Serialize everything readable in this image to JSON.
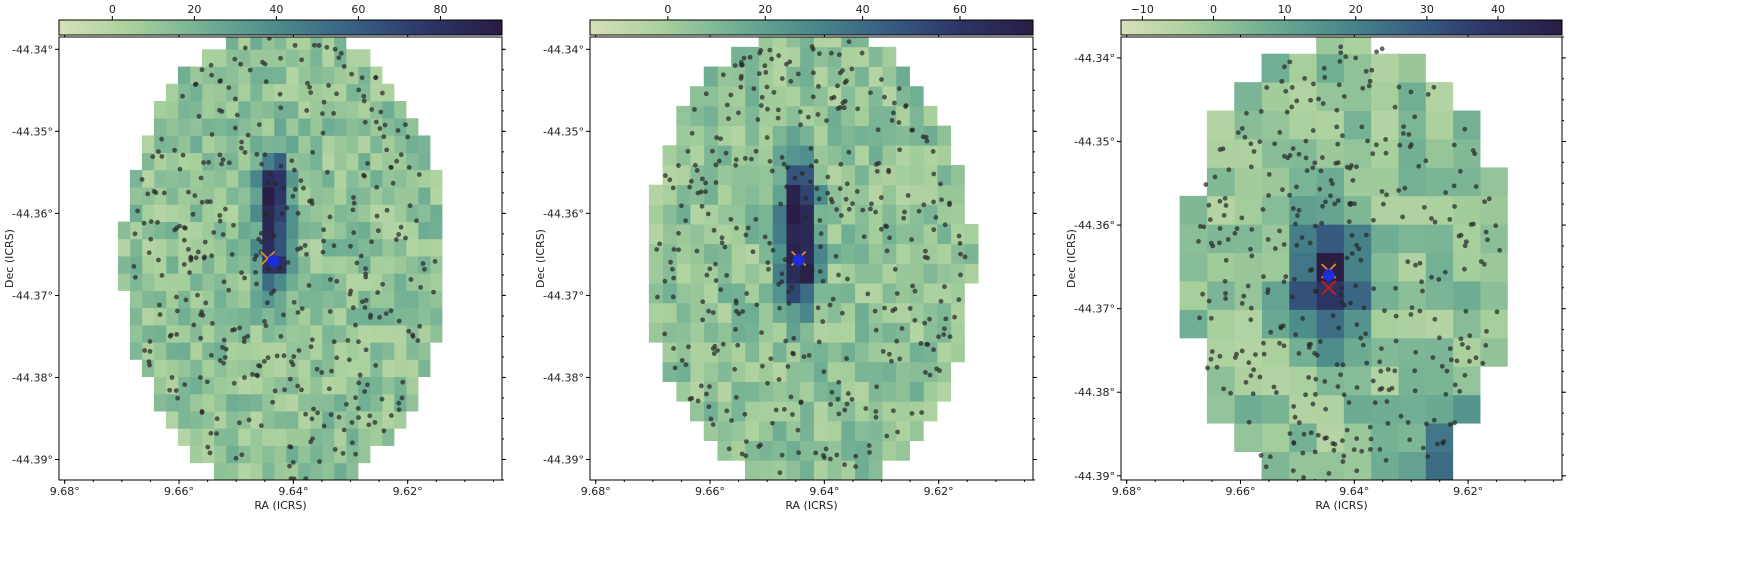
{
  "colormap": [
    "#d7e0b8",
    "#a8d09c",
    "#6fae93",
    "#4a8a8b",
    "#385f82",
    "#2c3566",
    "#2a1c43"
  ],
  "chart_data": [
    {
      "type": "heatmap",
      "xlabel": "RA (ICRS)",
      "ylabel": "Dec (ICRS)",
      "x_ticks": [
        "9.68°",
        "9.66°",
        "9.64°",
        "9.62°"
      ],
      "x_tick_values": [
        9.68,
        9.66,
        9.64,
        9.62
      ],
      "y_ticks": [
        "-44.34°",
        "-44.35°",
        "-44.36°",
        "-44.37°",
        "-44.38°",
        "-44.39°"
      ],
      "y_tick_values": [
        -44.34,
        -44.35,
        -44.36,
        -44.37,
        -44.38,
        -44.39
      ],
      "xlim": [
        9.681,
        9.6035
      ],
      "ylim": [
        -44.3925,
        -44.3385
      ],
      "colorbar_ticks": [
        "0",
        "20",
        "40",
        "60",
        "80"
      ],
      "colorbar_tick_values": [
        0,
        20,
        40,
        60,
        80
      ],
      "clim": [
        -13,
        95
      ],
      "pixel_size_deg": [
        0.0021,
        0.0021
      ],
      "circle_center": [
        9.6415,
        -44.3655
      ],
      "circle_radius_deg": 0.0285,
      "n_sources": 380,
      "peaks": [
        {
          "ra": 9.6435,
          "dec": -44.3575,
          "value": 95
        },
        {
          "ra": 9.6435,
          "dec": -44.3655,
          "value": 80
        }
      ],
      "markers": [
        {
          "kind": "x",
          "color": "#e08a2c",
          "ra": 9.6445,
          "dec": -44.3655
        },
        {
          "kind": "dot",
          "color": "#1c2cd8",
          "ra": 9.6435,
          "dec": -44.3658
        }
      ]
    },
    {
      "type": "heatmap",
      "xlabel": "RA (ICRS)",
      "ylabel": "Dec (ICRS)",
      "x_ticks": [
        "9.68°",
        "9.66°",
        "9.64°",
        "9.62°"
      ],
      "x_tick_values": [
        9.68,
        9.66,
        9.64,
        9.62
      ],
      "y_ticks": [
        "-44.34°",
        "-44.35°",
        "-44.36°",
        "-44.37°",
        "-44.38°",
        "-44.39°"
      ],
      "y_tick_values": [
        -44.34,
        -44.35,
        -44.36,
        -44.37,
        -44.38,
        -44.39
      ],
      "xlim": [
        9.681,
        9.6035
      ],
      "ylim": [
        -44.3925,
        -44.3385
      ],
      "colorbar_ticks": [
        "0",
        "20",
        "40",
        "60"
      ],
      "colorbar_tick_values": [
        0,
        20,
        40,
        60
      ],
      "clim": [
        -16,
        75
      ],
      "pixel_size_deg": [
        0.0024,
        0.0024
      ],
      "circle_center": [
        9.6425,
        -44.3655
      ],
      "circle_radius_deg": 0.0285,
      "n_sources": 380,
      "peaks": [
        {
          "ra": 9.6445,
          "dec": -44.3585,
          "value": 70
        },
        {
          "ra": 9.6445,
          "dec": -44.3665,
          "value": 75
        }
      ],
      "markers": [
        {
          "kind": "x",
          "color": "#e08a2c",
          "ra": 9.6445,
          "dec": -44.3655
        },
        {
          "kind": "dot",
          "color": "#1c2cd8",
          "ra": 9.6445,
          "dec": -44.3657
        }
      ]
    },
    {
      "type": "heatmap",
      "xlabel": "RA (ICRS)",
      "ylabel": "Dec (ICRS)",
      "x_ticks": [
        "9.68°",
        "9.66°",
        "9.64°",
        "9.62°"
      ],
      "x_tick_values": [
        9.68,
        9.66,
        9.64,
        9.62
      ],
      "y_ticks": [
        "-44.34°",
        "-44.35°",
        "-44.36°",
        "-44.37°",
        "-44.38°",
        "-44.39°"
      ],
      "y_tick_values": [
        -44.34,
        -44.35,
        -44.36,
        -44.37,
        -44.38,
        -44.39
      ],
      "xlim": [
        9.681,
        9.6035
      ],
      "ylim": [
        -44.3905,
        -44.3375
      ],
      "colorbar_ticks": [
        "−10",
        "0",
        "10",
        "20",
        "30",
        "40"
      ],
      "colorbar_tick_values": [
        -10,
        0,
        10,
        20,
        30,
        40
      ],
      "clim": [
        -13,
        49
      ],
      "pixel_size_deg": [
        0.0048,
        0.0034
      ],
      "circle_center": [
        9.6415,
        -44.3655
      ],
      "circle_radius_deg": 0.0285,
      "n_sources": 380,
      "peaks": [
        {
          "ra": 9.6445,
          "dec": -44.3665,
          "value": 48
        },
        {
          "ra": 9.6205,
          "dec": -44.3895,
          "value": 40
        }
      ],
      "markers": [
        {
          "kind": "x",
          "color": "#e08a2c",
          "ra": 9.6445,
          "dec": -44.3655
        },
        {
          "kind": "dot",
          "color": "#1c2cd8",
          "ra": 9.6445,
          "dec": -44.366
        },
        {
          "kind": "x",
          "color": "#d01818",
          "ra": 9.6445,
          "dec": -44.3675
        }
      ]
    }
  ]
}
